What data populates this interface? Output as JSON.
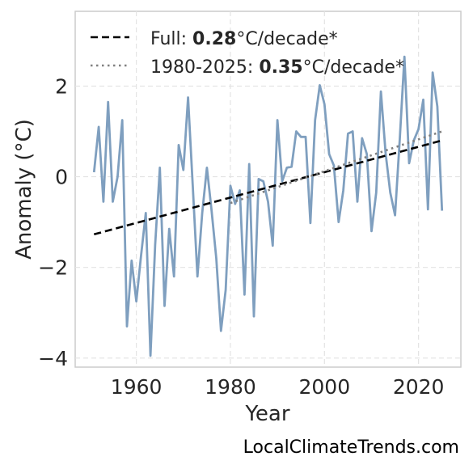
{
  "chart_data": {
    "type": "line",
    "xlabel": "Year",
    "ylabel": "Anomaly (°C)",
    "xlim": [
      1947,
      2029
    ],
    "ylim": [
      -4.2,
      3.65
    ],
    "xticks": [
      1960,
      1980,
      2000,
      2020
    ],
    "yticks": [
      -4,
      -2,
      0,
      2
    ],
    "ytick_labels": [
      "−4",
      "−2",
      "0",
      "2"
    ],
    "grid": true,
    "legend_position": "top-left",
    "series": [
      {
        "kind": "data",
        "color": "#7f9fbf",
        "x": [
          1951,
          1952,
          1953,
          1954,
          1955,
          1956,
          1957,
          1958,
          1959,
          1960,
          1961,
          1962,
          1963,
          1964,
          1965,
          1966,
          1967,
          1968,
          1969,
          1970,
          1971,
          1972,
          1973,
          1974,
          1975,
          1976,
          1977,
          1978,
          1979,
          1980,
          1981,
          1982,
          1983,
          1984,
          1985,
          1986,
          1987,
          1988,
          1989,
          1990,
          1991,
          1992,
          1993,
          1994,
          1995,
          1996,
          1997,
          1998,
          1999,
          2000,
          2001,
          2002,
          2003,
          2004,
          2005,
          2006,
          2007,
          2008,
          2009,
          2010,
          2011,
          2012,
          2013,
          2014,
          2015,
          2016,
          2017,
          2018,
          2019,
          2020,
          2021,
          2022,
          2023,
          2024,
          2025
        ],
        "y": [
          0.1,
          1.1,
          -0.55,
          1.65,
          -0.55,
          0.0,
          1.25,
          -3.3,
          -1.85,
          -2.75,
          -1.75,
          -0.8,
          -3.95,
          -1.5,
          0.2,
          -2.85,
          -1.15,
          -2.2,
          0.7,
          0.15,
          1.75,
          -0.2,
          -2.2,
          -0.8,
          0.2,
          -0.75,
          -1.8,
          -3.4,
          -2.5,
          -0.2,
          -0.6,
          -0.3,
          -2.6,
          0.28,
          -3.08,
          -0.05,
          -0.1,
          -0.55,
          -1.52,
          1.25,
          -0.1,
          0.2,
          0.22,
          1.0,
          0.88,
          0.88,
          -1.02,
          1.25,
          2.02,
          1.6,
          0.5,
          0.25,
          -1.0,
          -0.3,
          0.95,
          1.0,
          -0.55,
          0.85,
          0.5,
          -1.2,
          -0.35,
          1.88,
          0.52,
          -0.35,
          -0.85,
          0.82,
          2.65,
          0.3,
          0.8,
          1.05,
          1.7,
          -0.72,
          2.3,
          1.55,
          -0.75
        ]
      },
      {
        "kind": "trend",
        "style": "dashed",
        "color": "#000000",
        "x": [
          1951,
          2025
        ],
        "y": [
          -1.27,
          0.8
        ]
      },
      {
        "kind": "trend",
        "style": "dotted",
        "color": "#808080",
        "x": [
          1980,
          2025
        ],
        "y": [
          -0.58,
          1.0
        ]
      }
    ],
    "legend": [
      {
        "prefix": "Full: ",
        "value": "0.28",
        "suffix": "°C/decade*",
        "style": "dashed",
        "color": "#000000"
      },
      {
        "prefix": "1980-2025: ",
        "value": "0.35",
        "suffix": "°C/decade*",
        "style": "dotted",
        "color": "#808080"
      }
    ]
  },
  "watermark": "LocalClimateTrends.com"
}
